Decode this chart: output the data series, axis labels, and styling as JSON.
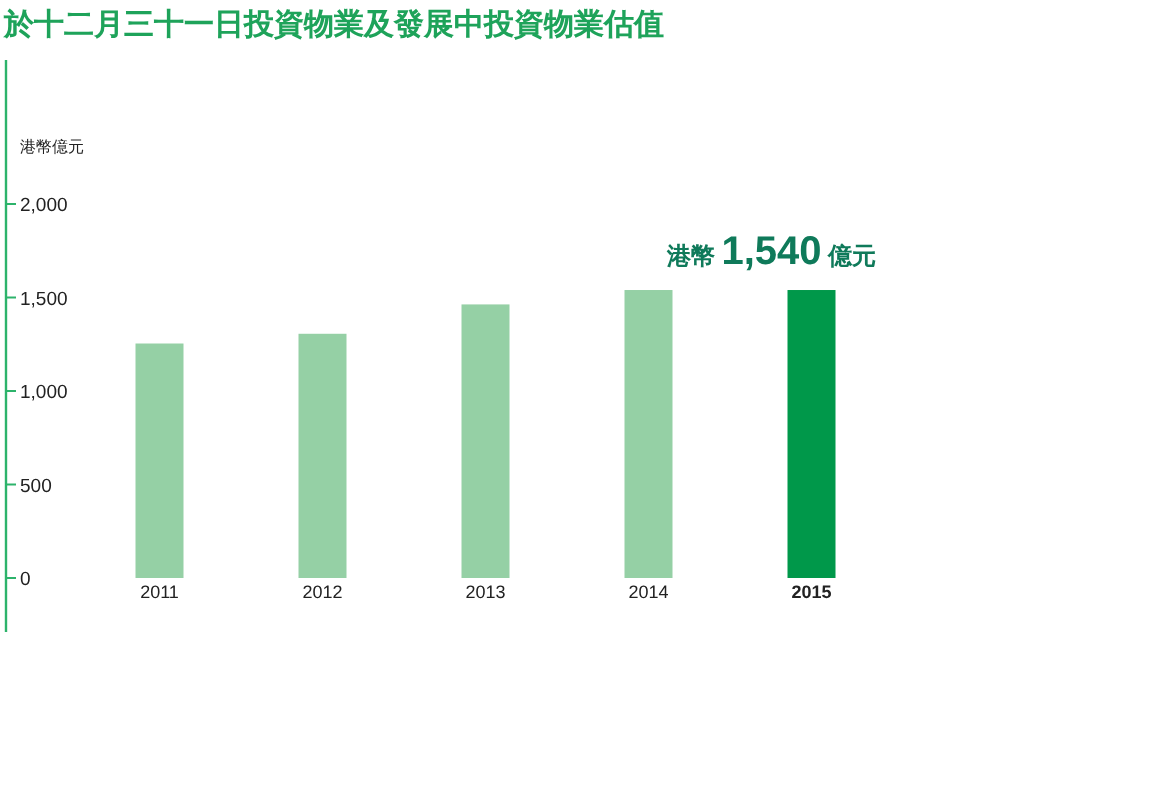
{
  "chart_data": {
    "type": "bar",
    "title": "於十二月三十一日投資物業及發展中投資物業估值",
    "ylabel": "港幣億元",
    "categories": [
      "2011",
      "2012",
      "2013",
      "2014",
      "2015"
    ],
    "values": [
      1254,
      1306,
      1463,
      1540,
      1540
    ],
    "colors": [
      "#95d0a5",
      "#95d0a5",
      "#95d0a5",
      "#95d0a5",
      "#00984a"
    ],
    "ylim": [
      0,
      2000
    ],
    "yticks": [
      0,
      500,
      {
        "value": 1000,
        "label": "1,000"
      },
      {
        "value": 1500,
        "label": "1,500"
      },
      {
        "value": 2000,
        "label": "2,000"
      }
    ],
    "annotations": [
      {
        "text": "港幣 1,540 億元",
        "x": "2015",
        "y": 1540
      }
    ]
  }
}
